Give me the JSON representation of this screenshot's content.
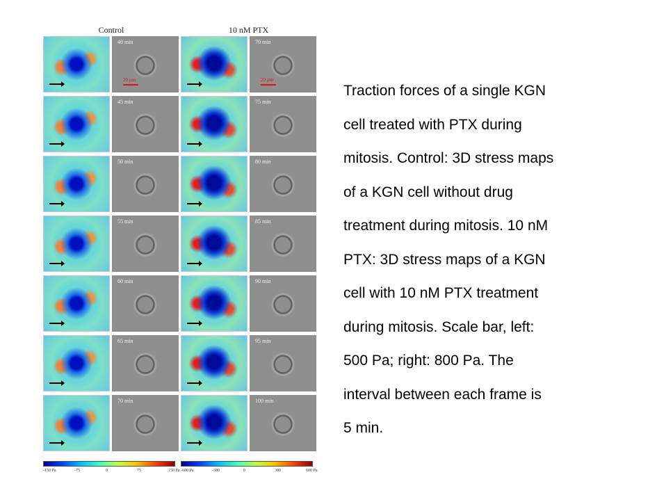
{
  "figure": {
    "control_title": "Control",
    "ptx_title": "10 nM PTX",
    "control_times": [
      "40 min",
      "45 min",
      "50 min",
      "55 min",
      "60 min",
      "65 min",
      "70 min"
    ],
    "ptx_times": [
      "70 min",
      "75 min",
      "80 min",
      "85 min",
      "90 min",
      "95 min",
      "100 min"
    ],
    "scale_bar_label": "20 µm",
    "control_colorbar_ticks": [
      "-150 Pa",
      "-75",
      "0",
      "75",
      "150 Pa"
    ],
    "ptx_colorbar_ticks": [
      "-600 Pa",
      "-300",
      "0",
      "300",
      "600 Pa"
    ],
    "colormap_colors": [
      "#00008f",
      "#0040ff",
      "#00c0ff",
      "#40ffbf",
      "#c0ff40",
      "#ffc000",
      "#ff4000",
      "#8f0000"
    ]
  },
  "caption": {
    "lines": [
      "Traction forces of a single KGN",
      "cell treated with PTX during",
      "mitosis. Control: 3D stress maps",
      "of a KGN cell without drug",
      "treatment during mitosis. 10 nM",
      "PTX: 3D stress maps of a KGN",
      "cell with 10 nM PTX treatment",
      "during mitosis. Scale bar, left:",
      "500 Pa; right: 800 Pa. The",
      "interval between each frame is",
      "5 min."
    ]
  }
}
